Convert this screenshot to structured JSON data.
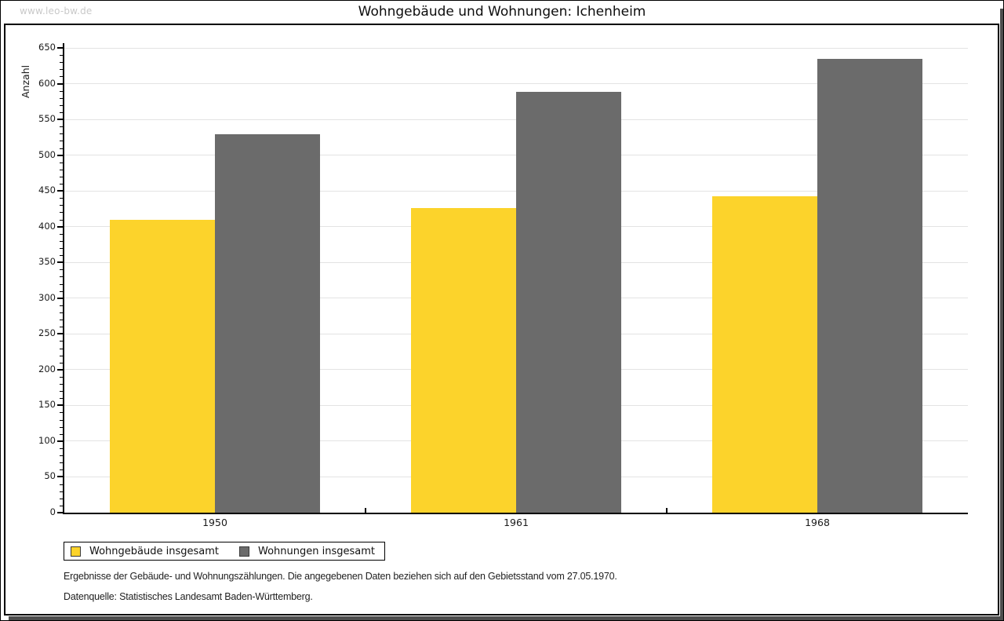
{
  "watermark": "www.leo-bw.de",
  "title": "Wohngebäude und Wohnungen: Ichenheim",
  "chart_data": {
    "type": "bar",
    "title": "Wohngebäude und Wohnungen: Ichenheim",
    "xlabel": "",
    "ylabel": "Anzahl",
    "categories": [
      "1950",
      "1961",
      "1968"
    ],
    "series": [
      {
        "name": "Wohngebäude insgesamt",
        "color": "#FCD32B",
        "values": [
          410,
          426,
          443
        ]
      },
      {
        "name": "Wohnungen insgesamt",
        "color": "#6B6B6B",
        "values": [
          529,
          588,
          635
        ]
      }
    ],
    "ylim": [
      0,
      650
    ],
    "ytick_step": 50,
    "minor_tick_step": 10,
    "grid": "horizontal-major",
    "legend_position": "bottom-left"
  },
  "footer": {
    "line1": "Ergebnisse der Gebäude- und Wohnungszählungen. Die angegebenen Daten beziehen sich auf den Gebietsstand vom 27.05.1970.",
    "line2": "Datenquelle: Statistisches Landesamt Baden-Württemberg."
  }
}
